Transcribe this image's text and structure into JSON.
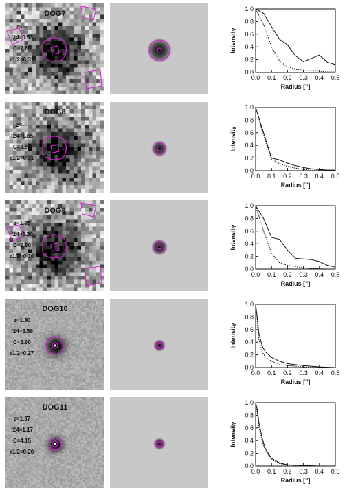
{
  "colors": {
    "contour": "#d020d0",
    "axis": "#111111",
    "psf_background": "#c8c8c8"
  },
  "objects": [
    {
      "name": "DOG7",
      "z": "z=---",
      "f24": "f24=0.53",
      "C": "C=2.65",
      "r12": "r1/2=0.31"
    },
    {
      "name": "DOG8",
      "z": "z=---",
      "f24": "f24=1.65",
      "C": "C=3.50",
      "r12": "r1/2=0.31"
    },
    {
      "name": "DOG9",
      "z": "z=1.95",
      "f24": "f24=0.30",
      "C": "C=2.90",
      "r12": "r1/2=0.30"
    },
    {
      "name": "DOG10",
      "z": "z=1.30",
      "f24": "f24=5.58",
      "C": "C=3.90",
      "r12": "r1/2=0.27"
    },
    {
      "name": "DOG11",
      "z": "z=1.37",
      "f24": "f24=1.17",
      "C": "C=4.15",
      "r12": "r1/2=0.20"
    }
  ],
  "chart_data": [
    {
      "type": "line",
      "xlabel": "Radius [\"]",
      "ylabel": "Intensity",
      "xlim": [
        0.0,
        0.5
      ],
      "ylim": [
        0.0,
        1.0
      ],
      "xticks": [
        "0.0",
        "0.1",
        "0.2",
        "0.3",
        "0.4",
        "0.5"
      ],
      "yticks": [
        "0.0",
        "0.2",
        "0.4",
        "0.6",
        "0.8",
        "1.0"
      ],
      "series": [
        {
          "style": "solid",
          "x": [
            0.0,
            0.05,
            0.1,
            0.15,
            0.2,
            0.25,
            0.3,
            0.35,
            0.4,
            0.45,
            0.5
          ],
          "y": [
            1.0,
            0.93,
            0.72,
            0.52,
            0.43,
            0.26,
            0.17,
            0.22,
            0.27,
            0.16,
            0.12
          ]
        },
        {
          "style": "dotted",
          "x": [
            0.0,
            0.05,
            0.1,
            0.15,
            0.2,
            0.25,
            0.3,
            0.35,
            0.4,
            0.45,
            0.5
          ],
          "y": [
            1.0,
            0.75,
            0.4,
            0.18,
            0.08,
            0.05,
            0.04,
            0.03,
            0.02,
            0.01,
            0.01
          ]
        }
      ]
    },
    {
      "type": "line",
      "xlabel": "Radius [\"]",
      "ylabel": "Intensity",
      "xlim": [
        0.0,
        0.5
      ],
      "ylim": [
        0.0,
        1.0
      ],
      "xticks": [
        "0.0",
        "0.1",
        "0.2",
        "0.3",
        "0.4",
        "0.5"
      ],
      "yticks": [
        "0.0",
        "0.2",
        "0.4",
        "0.6",
        "0.8",
        "1.0"
      ],
      "series": [
        {
          "style": "solid",
          "x": [
            0.0,
            0.05,
            0.1,
            0.15,
            0.2,
            0.25,
            0.3,
            0.35,
            0.4,
            0.45,
            0.5
          ],
          "y": [
            1.0,
            0.6,
            0.2,
            0.17,
            0.12,
            0.08,
            0.05,
            0.03,
            0.02,
            0.01,
            0.01
          ]
        },
        {
          "style": "dotted",
          "x": [
            0.0,
            0.05,
            0.1,
            0.15,
            0.2,
            0.25,
            0.3,
            0.35,
            0.4,
            0.45,
            0.5
          ],
          "y": [
            1.0,
            0.55,
            0.18,
            0.11,
            0.07,
            0.04,
            0.02,
            0.01,
            0.01,
            0.0,
            0.0
          ]
        }
      ]
    },
    {
      "type": "line",
      "xlabel": "Radius [\"]",
      "ylabel": "Intensity",
      "xlim": [
        0.0,
        0.5
      ],
      "ylim": [
        0.0,
        1.0
      ],
      "xticks": [
        "0.0",
        "0.1",
        "0.2",
        "0.3",
        "0.4",
        "0.5"
      ],
      "yticks": [
        "0.0",
        "0.2",
        "0.4",
        "0.6",
        "0.8",
        "1.0"
      ],
      "series": [
        {
          "style": "solid",
          "x": [
            0.0,
            0.05,
            0.1,
            0.15,
            0.2,
            0.25,
            0.3,
            0.35,
            0.4,
            0.45,
            0.5
          ],
          "y": [
            1.0,
            0.8,
            0.5,
            0.47,
            0.3,
            0.17,
            0.16,
            0.15,
            0.12,
            0.06,
            0.03
          ]
        },
        {
          "style": "dotted",
          "x": [
            0.0,
            0.05,
            0.1,
            0.15,
            0.2,
            0.25,
            0.3,
            0.35,
            0.4,
            0.45,
            0.5
          ],
          "y": [
            1.0,
            0.6,
            0.25,
            0.1,
            0.06,
            0.04,
            0.02,
            0.01,
            0.01,
            0.0,
            0.0
          ]
        }
      ]
    },
    {
      "type": "line",
      "xlabel": "Radius [\"]",
      "ylabel": "Intensity",
      "xlim": [
        0.0,
        0.5
      ],
      "ylim": [
        0.0,
        1.0
      ],
      "xticks": [
        "0.0",
        "0.1",
        "0.2",
        "0.3",
        "0.4",
        "0.5"
      ],
      "yticks": [
        "0.0",
        "0.2",
        "0.4",
        "0.6",
        "0.8",
        "1.0"
      ],
      "series": [
        {
          "style": "solid",
          "x": [
            0.0,
            0.01,
            0.02,
            0.04,
            0.06,
            0.1,
            0.15,
            0.2,
            0.3,
            0.4,
            0.5
          ],
          "y": [
            1.0,
            0.8,
            0.55,
            0.35,
            0.25,
            0.16,
            0.1,
            0.06,
            0.03,
            0.01,
            0.0
          ]
        },
        {
          "style": "dotted",
          "x": [
            0.0,
            0.01,
            0.02,
            0.04,
            0.06,
            0.1,
            0.15,
            0.2,
            0.3,
            0.4,
            0.5
          ],
          "y": [
            1.0,
            0.7,
            0.45,
            0.25,
            0.17,
            0.1,
            0.05,
            0.03,
            0.01,
            0.0,
            0.0
          ]
        }
      ]
    },
    {
      "type": "line",
      "xlabel": "Radius [\"]",
      "ylabel": "Intensity",
      "xlim": [
        0.0,
        0.5
      ],
      "ylim": [
        0.0,
        1.0
      ],
      "xticks": [
        "0.0",
        "0.1",
        "0.2",
        "0.3",
        "0.4",
        "0.5"
      ],
      "yticks": [
        "0.0",
        "0.2",
        "0.4",
        "0.6",
        "0.8",
        "1.0"
      ],
      "series": [
        {
          "style": "solid",
          "x": [
            0.0,
            0.01,
            0.02,
            0.04,
            0.06,
            0.1,
            0.15,
            0.2,
            0.3,
            0.4,
            0.5
          ],
          "y": [
            1.0,
            0.9,
            0.7,
            0.45,
            0.28,
            0.12,
            0.05,
            0.02,
            0.01,
            0.0,
            0.0
          ]
        },
        {
          "style": "dotted",
          "x": [
            0.0,
            0.01,
            0.02,
            0.04,
            0.06,
            0.1,
            0.15,
            0.2,
            0.3,
            0.4,
            0.5
          ],
          "y": [
            1.0,
            0.85,
            0.62,
            0.4,
            0.25,
            0.1,
            0.04,
            0.02,
            0.0,
            0.0,
            0.0
          ]
        }
      ]
    }
  ]
}
